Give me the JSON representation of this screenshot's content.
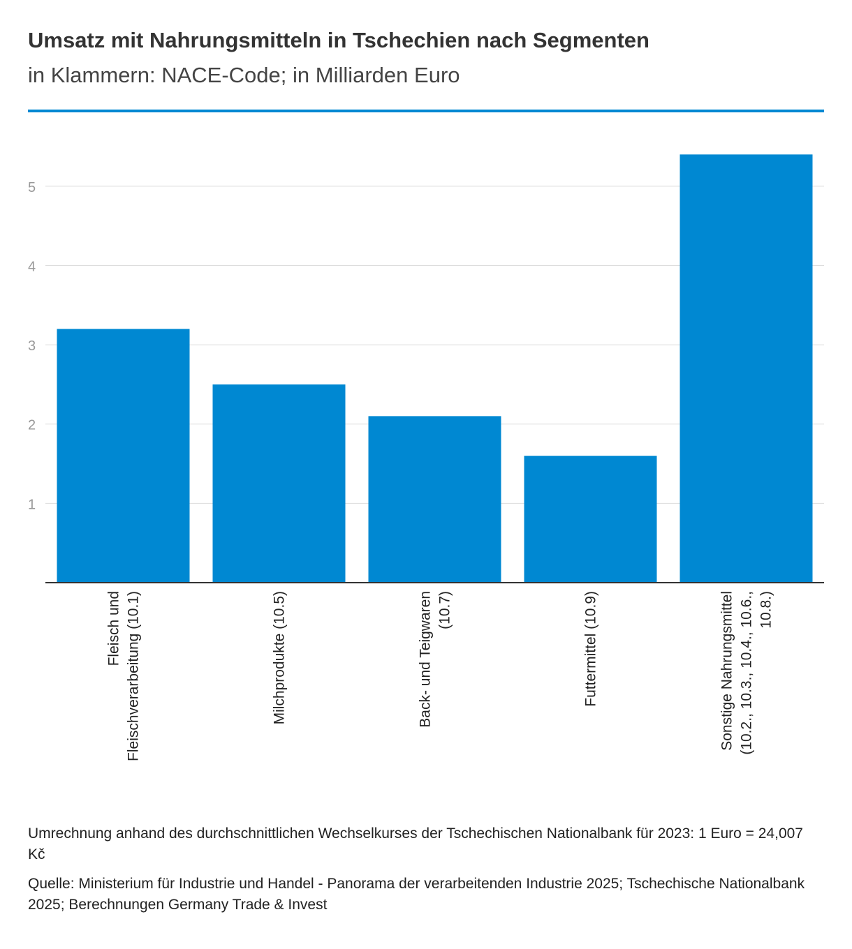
{
  "header": {
    "title": "Umsatz mit Nahrungsmitteln in Tschechien nach Segmenten",
    "subtitle": "in Klammern: NACE-Code; in Milliarden Euro"
  },
  "colors": {
    "bar": "#0088d2",
    "accent_rule": "#0088d2",
    "grid": "#dddddd",
    "axis": "#333333",
    "tick_text": "#999999"
  },
  "chart_data": {
    "type": "bar",
    "title": "Umsatz mit Nahrungsmitteln in Tschechien nach Segmenten",
    "subtitle": "in Klammern: NACE-Code; in Milliarden Euro",
    "xlabel": "",
    "ylabel": "",
    "ylim": [
      0,
      5.5
    ],
    "yticks": [
      1,
      2,
      3,
      4,
      5
    ],
    "grid": true,
    "categories": [
      [
        "Fleisch und",
        "Fleischverarbeitung (10.1)"
      ],
      [
        "Milchprodukte (10.5)"
      ],
      [
        "Back- und Teigwaren",
        "(10.7)"
      ],
      [
        "Futtermittel (10.9)"
      ],
      [
        "Sonstige Nahrungsmittel",
        "(10.2., 10.3., 10.4., 10.6.,",
        "10.8.)"
      ]
    ],
    "values": [
      3.2,
      2.5,
      2.1,
      1.6,
      5.4
    ]
  },
  "footer": {
    "note": "Umrechnung anhand des durchschnittlichen Wechselkurses der Tschechischen Nationalbank für 2023: 1 Euro = 24,007 Kč",
    "source": "Quelle: Ministerium für Industrie und Handel - Panorama der verarbeitenden Industrie 2025; Tschechische Nationalbank 2025; Berechnungen Germany Trade & Invest"
  }
}
